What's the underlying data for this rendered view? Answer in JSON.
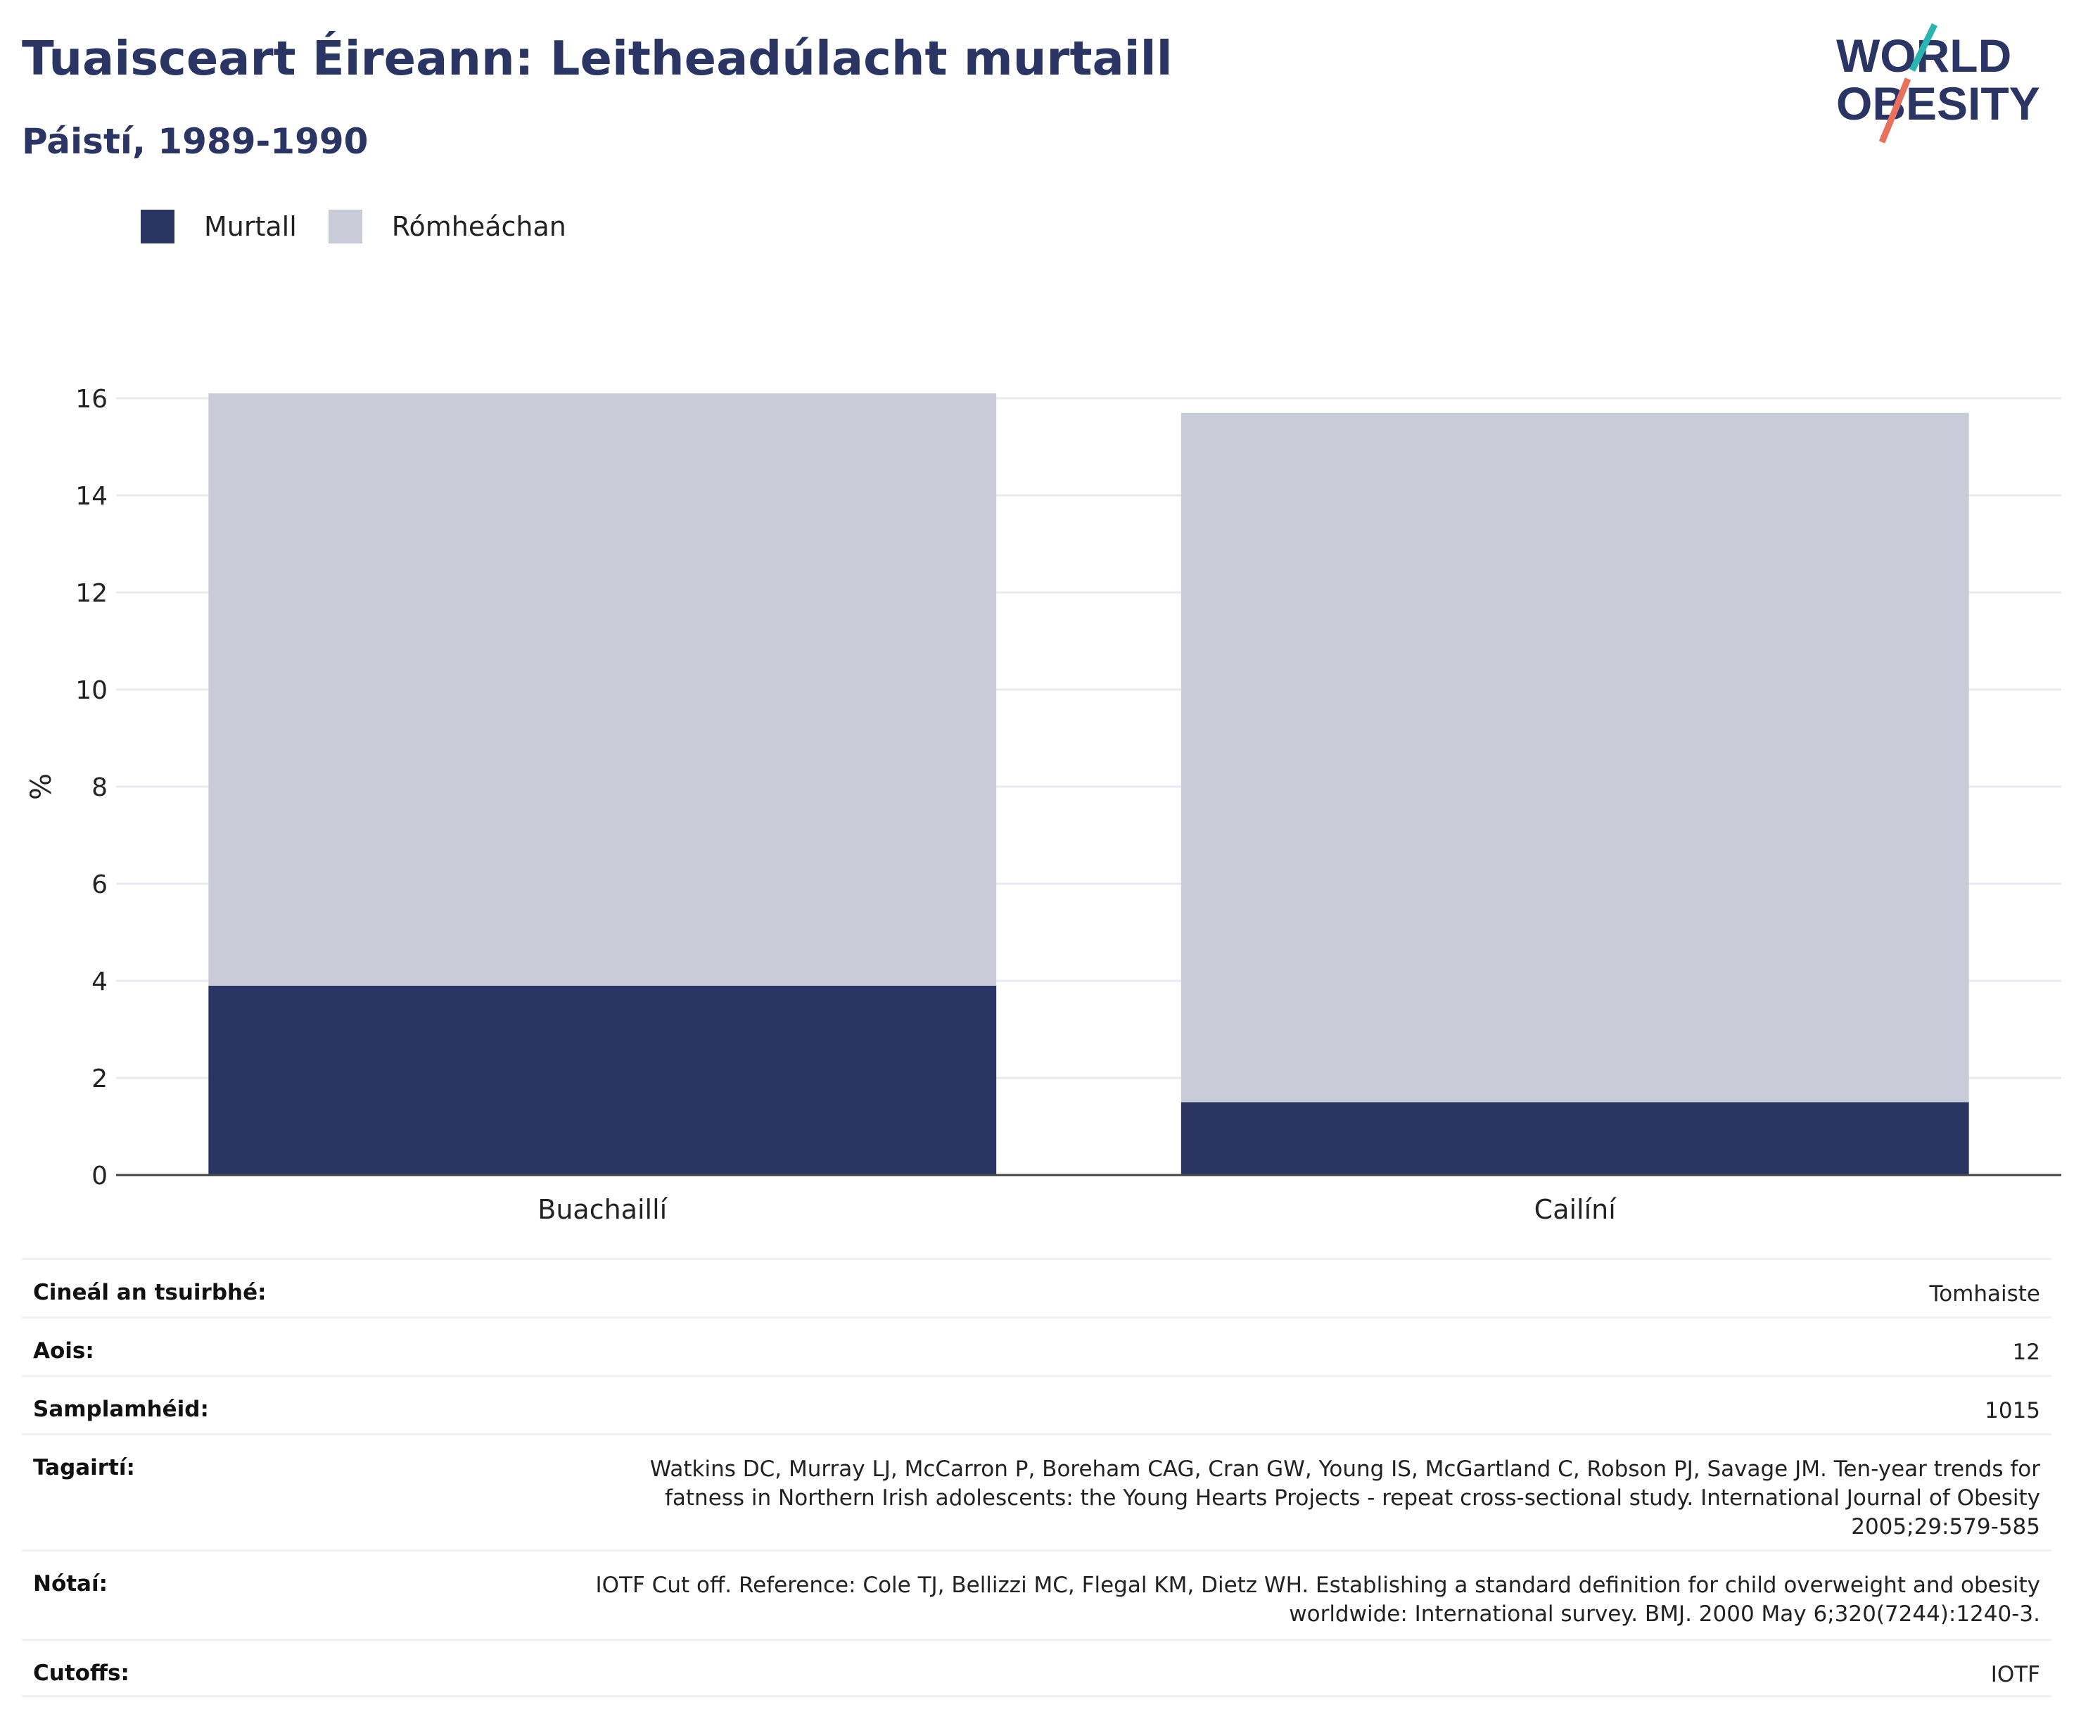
{
  "header": {
    "title": "Tuaisceart Éireann: Leitheadúlacht murtaill",
    "subtitle": "Páistí, 1989-1990"
  },
  "logo": {
    "line1": "WORLD",
    "line2": "OBESITY",
    "accent_teal": "#2bb5b0",
    "accent_coral": "#e8705d"
  },
  "legend": [
    {
      "label": "Murtall",
      "color": "#2a3563"
    },
    {
      "label": "Rómheáchan",
      "color": "#c9ccd8"
    }
  ],
  "chart_data": {
    "type": "bar",
    "stacked": true,
    "categories": [
      "Buachaillí",
      "Cailíní"
    ],
    "series": [
      {
        "name": "Murtall",
        "color": "#2a3563",
        "values": [
          3.9,
          1.5
        ]
      },
      {
        "name": "Rómheáchan",
        "color": "#c9ccd8",
        "values": [
          12.2,
          14.2
        ]
      }
    ],
    "ylabel": "%",
    "ylim": [
      0,
      16
    ],
    "yticks": [
      "0",
      "2",
      "4",
      "6",
      "8",
      "10",
      "12",
      "14",
      "16"
    ],
    "grid": true
  },
  "meta": {
    "survey_type": {
      "label": "Cineál an tsuirbhé:",
      "value": "Tomhaiste"
    },
    "age": {
      "label": "Aois:",
      "value": "12"
    },
    "sample_size": {
      "label": "Samplamhéid:",
      "value": "1015"
    },
    "references": {
      "label": "Tagairtí:",
      "value": "Watkins DC, Murray LJ, McCarron P, Boreham CAG, Cran GW, Young IS, McGartland C, Robson PJ, Savage JM. Ten-year trends for fatness in Northern Irish adolescents: the Young Hearts Projects - repeat cross-sectional study. International Journal of Obesity 2005;29:579-585"
    },
    "notes": {
      "label": "Nótaí:",
      "value": "IOTF Cut off. Reference: Cole TJ, Bellizzi MC, Flegal KM, Dietz WH. Establishing a standard definition for child overweight and obesity worldwide: International survey. BMJ. 2000 May 6;320(7244):1240-3."
    },
    "cutoffs": {
      "label": "Cutoffs:",
      "value": "IOTF"
    }
  }
}
